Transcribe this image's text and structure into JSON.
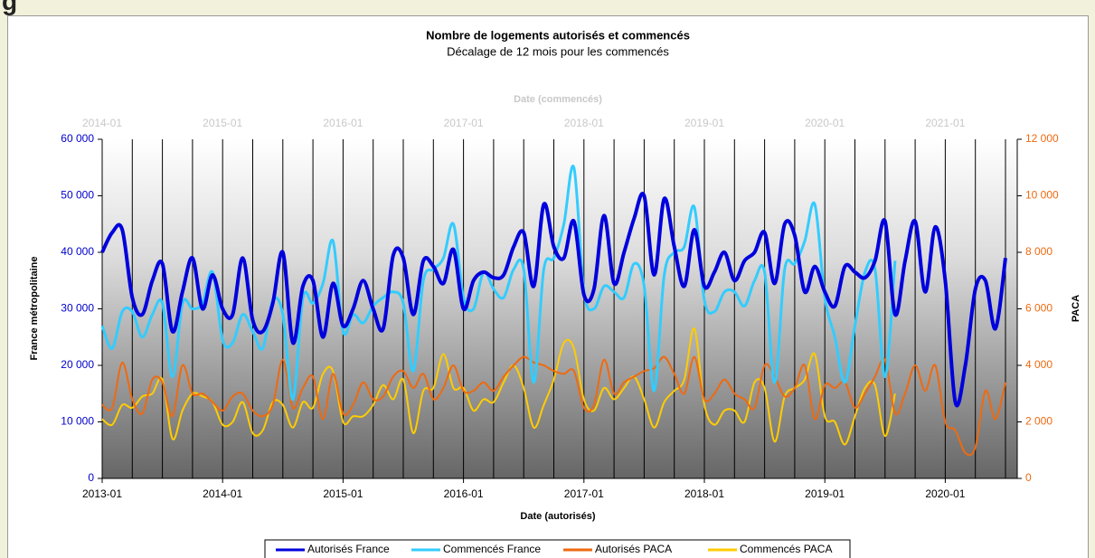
{
  "heading": "g",
  "chart_data": {
    "type": "line",
    "title": "Nombre de logements autorisés et commencés",
    "subtitle": "Décalage de 12 mois pour les commencés",
    "x_label": "Date (autorisés)",
    "x2_label": "Date (commencés)",
    "y_label": "France métropolitaine",
    "y2_label": "PACA",
    "x": [
      "2013-01",
      "2013-02",
      "2013-03",
      "2013-04",
      "2013-05",
      "2013-06",
      "2013-07",
      "2013-08",
      "2013-09",
      "2013-10",
      "2013-11",
      "2013-12",
      "2014-01",
      "2014-02",
      "2014-03",
      "2014-04",
      "2014-05",
      "2014-06",
      "2014-07",
      "2014-08",
      "2014-09",
      "2014-10",
      "2014-11",
      "2014-12",
      "2015-01",
      "2015-02",
      "2015-03",
      "2015-04",
      "2015-05",
      "2015-06",
      "2015-07",
      "2015-08",
      "2015-09",
      "2015-10",
      "2015-11",
      "2015-12",
      "2016-01",
      "2016-02",
      "2016-03",
      "2016-04",
      "2016-05",
      "2016-06",
      "2016-07",
      "2016-08",
      "2016-09",
      "2016-10",
      "2016-11",
      "2016-12",
      "2017-01",
      "2017-02",
      "2017-03",
      "2017-04",
      "2017-05",
      "2017-06",
      "2017-07",
      "2017-08",
      "2017-09",
      "2017-10",
      "2017-11",
      "2017-12",
      "2018-01",
      "2018-02",
      "2018-03",
      "2018-04",
      "2018-05",
      "2018-06",
      "2018-07",
      "2018-08",
      "2018-09",
      "2018-10",
      "2018-11",
      "2018-12",
      "2019-01",
      "2019-02",
      "2019-03",
      "2019-04",
      "2019-05",
      "2019-06",
      "2019-07",
      "2019-08",
      "2019-09",
      "2019-10",
      "2019-11",
      "2019-12",
      "2020-01",
      "2020-02",
      "2020-03",
      "2020-04",
      "2020-05",
      "2020-06",
      "2020-07"
    ],
    "xticks": [
      "2013-01",
      "2014-01",
      "2015-01",
      "2016-01",
      "2017-01",
      "2018-01",
      "2019-01",
      "2020-01"
    ],
    "x2ticks": [
      "2014-01",
      "2015-01",
      "2016-01",
      "2017-01",
      "2018-01",
      "2019-01",
      "2020-01",
      "2021-01"
    ],
    "ylim": [
      0,
      60000
    ],
    "yticks": [
      0,
      {
        "value": 10000,
        "label": "10 000"
      },
      {
        "value": 20000,
        "label": "20 000"
      },
      {
        "value": 30000,
        "label": "30 000"
      },
      {
        "value": 40000,
        "label": "40 000"
      },
      {
        "value": 50000,
        "label": "50 000"
      },
      {
        "value": 60000,
        "label": "60 000"
      }
    ],
    "y2lim": [
      0,
      12000
    ],
    "y2ticks": [
      0,
      {
        "value": 2000,
        "label": "2 000"
      },
      {
        "value": 4000,
        "label": "4 000"
      },
      {
        "value": 6000,
        "label": "6 000"
      },
      {
        "value": 8000,
        "label": "8 000"
      },
      {
        "value": 10000,
        "label": "10 000"
      },
      {
        "value": 12000,
        "label": "12 000"
      }
    ],
    "y_color": "#0000cc",
    "y2_color": "#ee6a10",
    "x2_color": "#c8c8c8",
    "series": [
      {
        "name": "Autorisés France",
        "color": "#0000dd",
        "width": 4,
        "values": [
          40000,
          43500,
          44000,
          32000,
          29000,
          35000,
          38000,
          26000,
          33000,
          39000,
          30000,
          36000,
          30000,
          29000,
          39000,
          28000,
          26000,
          31000,
          40000,
          24000,
          34000,
          35000,
          25000,
          34500,
          27000,
          30000,
          35000,
          30000,
          26500,
          39500,
          39000,
          29000,
          38500,
          37500,
          34500,
          40500,
          30000,
          35000,
          36500,
          35500,
          36000,
          41000,
          43500,
          34000,
          48500,
          41000,
          39000,
          45500,
          32500,
          33500,
          46500,
          34500,
          40000,
          46000,
          50000,
          36000,
          49500,
          41000,
          34000,
          44000,
          34000,
          36500,
          40000,
          35000,
          38500,
          40000,
          43500,
          34500,
          45000,
          43000,
          33000,
          37500,
          33000,
          30500,
          37500,
          36500,
          35500,
          38500,
          45500,
          29000,
          38500,
          45500,
          33000,
          44500,
          35000,
          13500,
          20000,
          33500,
          35000,
          26500,
          39000
        ]
      },
      {
        "name": "Commencés France",
        "color": "#33ccff",
        "width": 3,
        "values": [
          27000,
          23000,
          29500,
          29500,
          25000,
          29000,
          31000,
          18000,
          31000,
          30000,
          31000,
          36500,
          24500,
          24000,
          29000,
          26000,
          23000,
          31500,
          29000,
          14000,
          32000,
          31000,
          34500,
          42000,
          26000,
          29000,
          27500,
          30500,
          32000,
          33000,
          31000,
          19000,
          35000,
          37000,
          39000,
          45000,
          32000,
          30000,
          36500,
          33500,
          32000,
          37000,
          37000,
          17000,
          37000,
          39000,
          45000,
          55000,
          33000,
          30000,
          34000,
          33000,
          32000,
          38000,
          34000,
          15500,
          36000,
          40000,
          41000,
          48000,
          31500,
          29500,
          33000,
          33000,
          30500,
          35000,
          36500,
          17000,
          37000,
          38000,
          42000,
          48500,
          32000,
          25000,
          17000,
          27000,
          36500,
          37000,
          18000,
          38500,
          null,
          null,
          null,
          null,
          null,
          null,
          null,
          null,
          null,
          null,
          null
        ]
      },
      {
        "name": "Autorisés PACA",
        "color": "#ee6a10",
        "width": 2,
        "axis": "y2",
        "values": [
          2600,
          2500,
          4100,
          2800,
          2300,
          3500,
          3400,
          2200,
          4000,
          3000,
          3000,
          2700,
          2400,
          2900,
          3000,
          2400,
          2200,
          2600,
          4200,
          2500,
          3200,
          3600,
          2100,
          3700,
          2300,
          2600,
          3400,
          2800,
          2900,
          3600,
          3800,
          3200,
          3700,
          2800,
          3200,
          4000,
          3100,
          3100,
          3400,
          3100,
          3600,
          4000,
          4300,
          4100,
          4000,
          3800,
          3700,
          3800,
          2500,
          2600,
          4200,
          3000,
          3400,
          3600,
          3800,
          3900,
          4300,
          3700,
          3000,
          4300,
          2800,
          3000,
          3500,
          3000,
          2800,
          2500,
          4000,
          3600,
          2900,
          3200,
          4000,
          2100,
          3300,
          3200,
          3400,
          2500,
          3000,
          3600,
          4200,
          2300,
          3000,
          4000,
          3100,
          4000,
          2000,
          1700,
          900,
          1100,
          3100,
          2100,
          3400
        ]
      },
      {
        "name": "Commencés PACA",
        "color": "#ffcc00",
        "width": 2,
        "axis": "y2",
        "values": [
          2100,
          1900,
          2600,
          2500,
          2900,
          3000,
          3500,
          1400,
          2400,
          3000,
          2900,
          2700,
          1900,
          2000,
          2700,
          1600,
          1700,
          2700,
          2600,
          1800,
          2700,
          2500,
          3700,
          3800,
          2000,
          2200,
          2200,
          2600,
          3300,
          2800,
          3500,
          1600,
          3100,
          3200,
          4400,
          3200,
          3200,
          2400,
          2800,
          2700,
          3400,
          4000,
          3200,
          1800,
          2600,
          3500,
          4800,
          4600,
          2800,
          2400,
          3200,
          2800,
          3200,
          3600,
          2800,
          1800,
          2700,
          3100,
          3500,
          5300,
          2600,
          1900,
          2400,
          2400,
          2000,
          3400,
          3200,
          1300,
          2900,
          3200,
          3500,
          4400,
          2200,
          2000,
          1200,
          2200,
          3200,
          3300,
          1500,
          3000,
          null,
          null,
          null,
          null,
          null,
          null,
          null,
          null,
          null,
          null,
          null
        ]
      }
    ]
  }
}
